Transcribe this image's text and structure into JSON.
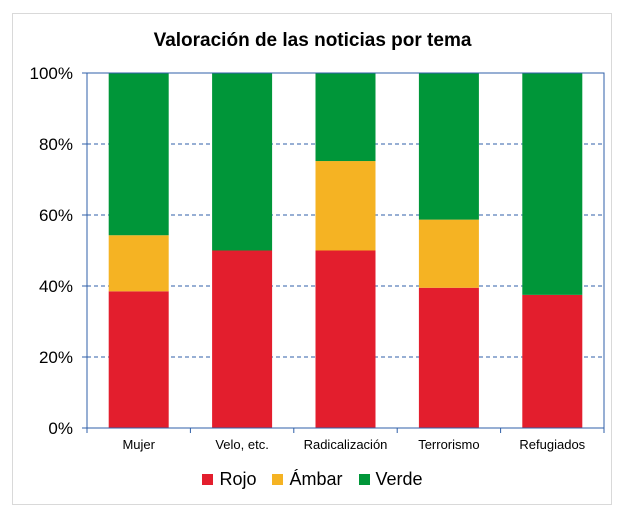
{
  "chart_data": {
    "type": "bar",
    "stacked": true,
    "title": "Valoración de las noticias por tema",
    "categories": [
      "Mujer",
      "Velo, etc.",
      "Radicalización",
      "Terrorismo",
      "Refugiados"
    ],
    "series": [
      {
        "name": "Rojo",
        "color": "#e31e2d",
        "values": [
          38.5,
          50,
          50,
          39.5,
          37.5
        ]
      },
      {
        "name": "Ámbar",
        "color": "#f5b323",
        "values": [
          15.8,
          0,
          25.2,
          19.2,
          0
        ]
      },
      {
        "name": "Verde",
        "color": "#009639",
        "values": [
          45.7,
          50,
          24.8,
          41.3,
          62.5
        ]
      }
    ],
    "ylim": [
      0,
      100
    ],
    "yticks": [
      "0%",
      "20%",
      "40%",
      "60%",
      "80%",
      "100%"
    ],
    "grid": true,
    "legend_position": "bottom"
  }
}
